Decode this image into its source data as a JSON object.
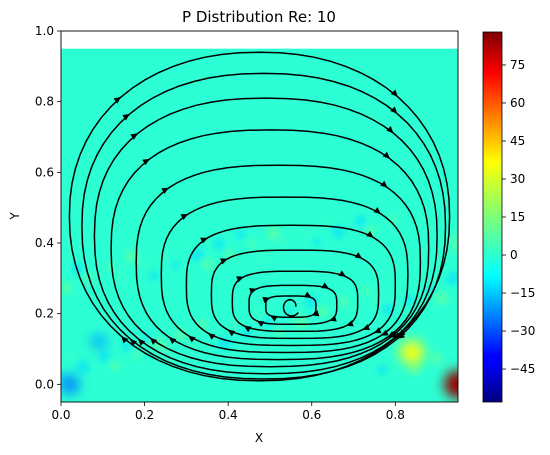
{
  "chart_data": {
    "type": "heatmap",
    "title": "P Distribution Re: 10",
    "xlabel": "X",
    "ylabel": "Y",
    "xlim": [
      0,
      0.95
    ],
    "ylim": [
      -0.05,
      1.0
    ],
    "heatmap_extent": {
      "x": [
        0,
        0.95
      ],
      "y": [
        -0.05,
        0.95
      ]
    },
    "xticks": [
      "0.0",
      "0.2",
      "0.4",
      "0.6",
      "0.8"
    ],
    "xtick_values": [
      0,
      0.2,
      0.4,
      0.6,
      0.8
    ],
    "yticks": [
      "0.0",
      "0.2",
      "0.4",
      "0.6",
      "0.8",
      "1.0"
    ],
    "ytick_values": [
      0,
      0.2,
      0.4,
      0.6,
      0.8,
      1.0
    ],
    "colormap": "jet",
    "colorbar": {
      "min": -58,
      "max": 88,
      "ticks": [
        "−45",
        "−30",
        "−15",
        "0",
        "15",
        "30",
        "45",
        "60",
        "75"
      ],
      "tick_values": [
        -45,
        -30,
        -15,
        0,
        15,
        30,
        45,
        60,
        75
      ]
    },
    "background_value": 3,
    "hotspots": [
      {
        "x": 0.95,
        "y": 0.0,
        "value": 85
      },
      {
        "x": 0.84,
        "y": 0.09,
        "value": 32
      },
      {
        "x": 0.02,
        "y": 0.0,
        "value": -20
      },
      {
        "x": 0.09,
        "y": 0.12,
        "value": -14
      },
      {
        "x": 0.95,
        "y": 0.4,
        "value": 10
      }
    ],
    "streamline_style": {
      "color": "#000000",
      "arrows": true
    },
    "vortex_center": {
      "x": 0.55,
      "y": 0.22
    },
    "grid": false
  }
}
